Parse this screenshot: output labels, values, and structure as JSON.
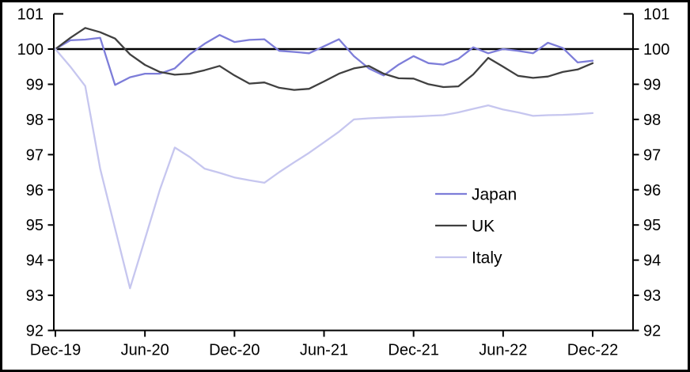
{
  "chart_data": {
    "type": "line",
    "title": "",
    "xlabel": "",
    "ylabel": "",
    "grid": false,
    "background": "#ffffff",
    "frame_color": "#000000",
    "axis_color": "#000000",
    "reference_line_y": 100,
    "ylim": [
      92,
      101
    ],
    "y_ticks": [
      92,
      93,
      94,
      95,
      96,
      97,
      98,
      99,
      100,
      101
    ],
    "y_axis_sides": [
      "left",
      "right"
    ],
    "x_tick_indices": [
      0,
      6,
      12,
      18,
      24,
      30,
      36
    ],
    "x_tick_labels": [
      "Dec-19",
      "Jun-20",
      "Dec-20",
      "Jun-21",
      "Dec-21",
      "Jun-22",
      "Dec-22"
    ],
    "x": [
      "Dec-19",
      "Jan-20",
      "Feb-20",
      "Mar-20",
      "Apr-20",
      "May-20",
      "Jun-20",
      "Jul-20",
      "Aug-20",
      "Sep-20",
      "Oct-20",
      "Nov-20",
      "Dec-20",
      "Jan-21",
      "Feb-21",
      "Mar-21",
      "Apr-21",
      "May-21",
      "Jun-21",
      "Jul-21",
      "Aug-21",
      "Sep-21",
      "Oct-21",
      "Nov-21",
      "Dec-21",
      "Jan-22",
      "Feb-22",
      "Mar-22",
      "Apr-22",
      "May-22",
      "Jun-22",
      "Jul-22",
      "Aug-22",
      "Sep-22",
      "Oct-22",
      "Nov-22",
      "Dec-22"
    ],
    "legend_position": "center-right",
    "series": [
      {
        "name": "Japan",
        "color": "#7d7dd9",
        "values": [
          100,
          100.25,
          100.27,
          100.32,
          98.98,
          99.2,
          99.3,
          99.3,
          99.45,
          99.85,
          100.15,
          100.4,
          100.2,
          100.26,
          100.28,
          99.95,
          99.92,
          99.88,
          100.08,
          100.28,
          99.8,
          99.45,
          99.25,
          99.56,
          99.8,
          99.6,
          99.56,
          99.72,
          100.05,
          99.88,
          100.0,
          99.95,
          99.88,
          100.18,
          100.03,
          99.62,
          99.67
        ]
      },
      {
        "name": "UK",
        "color": "#404040",
        "values": [
          100,
          100.32,
          100.6,
          100.48,
          100.3,
          99.85,
          99.55,
          99.35,
          99.27,
          99.3,
          99.4,
          99.52,
          99.25,
          99.02,
          99.05,
          98.9,
          98.84,
          98.87,
          99.08,
          99.3,
          99.45,
          99.52,
          99.3,
          99.17,
          99.16,
          99.0,
          98.92,
          98.94,
          99.28,
          99.75,
          99.5,
          99.24,
          99.18,
          99.22,
          99.35,
          99.42,
          99.6
        ]
      },
      {
        "name": "Italy",
        "color": "#c6c6ef",
        "values": [
          100,
          99.5,
          98.95,
          96.6,
          94.9,
          93.2,
          94.6,
          96.0,
          97.2,
          96.93,
          96.6,
          96.48,
          96.35,
          96.27,
          96.2,
          96.5,
          96.78,
          97.05,
          97.35,
          97.65,
          98.0,
          98.03,
          98.05,
          98.07,
          98.08,
          98.1,
          98.12,
          98.2,
          98.3,
          98.4,
          98.28,
          98.2,
          98.1,
          98.12,
          98.13,
          98.15,
          98.18
        ]
      }
    ]
  }
}
